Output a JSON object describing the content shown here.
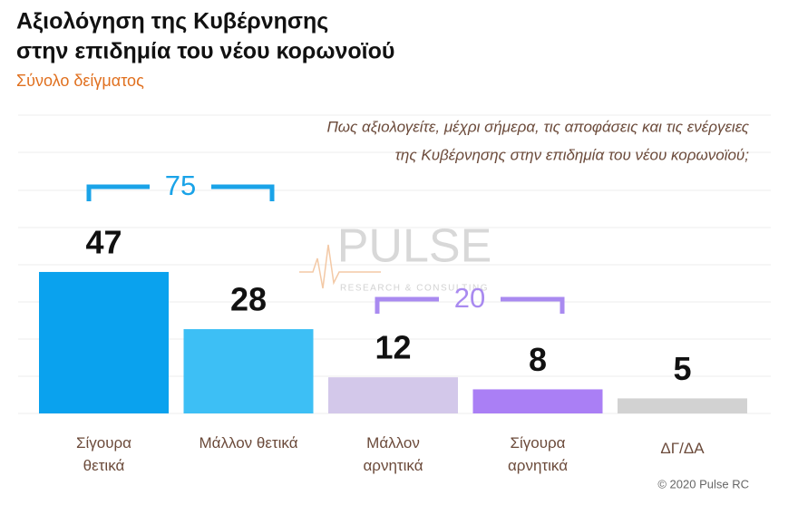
{
  "chart_data": {
    "type": "bar",
    "title": [
      "Αξιολόγηση της Κυβέρνησης",
      "στην επιδημία του νέου κορωνοϊού"
    ],
    "subtitle": "Σύνολο δείγματος",
    "question": [
      "Πως αξιολογείτε, μέχρι σήμερα, τις αποφάσεις και τις ενέργειες",
      "της Κυβέρνησης στην επιδημία του νέου κορωνοϊού;"
    ],
    "categories": [
      "Σίγουρα θετικά",
      "Μάλλον θετικά",
      "Μάλλον αρνητικά",
      "Σίγουρα αρνητικά",
      "ΔΓ/ΔΑ"
    ],
    "values": [
      47,
      28,
      12,
      8,
      5
    ],
    "colors": [
      "#0aa2ee",
      "#3dbff5",
      "#d3c8ea",
      "#aa7ff5",
      "#d2d2d2"
    ],
    "brackets": [
      {
        "value": 75,
        "color": "#1aa3e8"
      },
      {
        "value": 20,
        "color": "#a98af0"
      }
    ],
    "watermark": [
      "PULSE",
      "RESEARCH & CONSULTING"
    ],
    "copyright": "© 2020 Pulse RC"
  }
}
